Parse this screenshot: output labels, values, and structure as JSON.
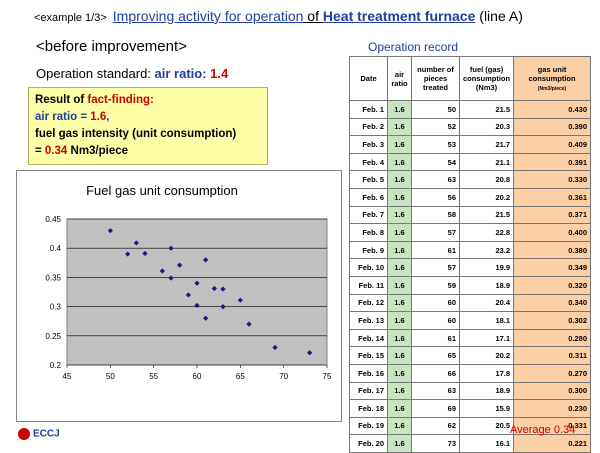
{
  "title": {
    "example": "<example 1/3>",
    "part1": "Improving activity for operation",
    "part2": " of ",
    "part3": "Heat treatment furnace",
    "part4": "  (line A)"
  },
  "before_label": "<before improvement>",
  "operation_standard": {
    "label": "Operation standard: ",
    "value_label": "air ratio: ",
    "value": "1.4"
  },
  "findings": {
    "heading_a": "Result of ",
    "heading_b": "fact-finding:",
    "air_a": "air ratio = ",
    "air_b": "1.6",
    "air_c": ",",
    "fuel_text": "fuel gas intensity (unit consumption)",
    "fuel_eq": "= ",
    "fuel_val": "0.34",
    "fuel_unit": " Nm3/piece"
  },
  "record": {
    "caption": "Operation record",
    "headers": {
      "date": "Date",
      "air_ratio": "air ratio",
      "pieces": "number of pieces treated",
      "fuel": "fuel (gas) consumption (Nm3)",
      "unit": "gas unit consumption",
      "unit_sub": "(Nm3/piece)"
    },
    "rows": [
      {
        "date": "Feb. 1",
        "air": "1.6",
        "pieces": "50",
        "fuel": "21.5",
        "unit": "0.430"
      },
      {
        "date": "Feb. 2",
        "air": "1.6",
        "pieces": "52",
        "fuel": "20.3",
        "unit": "0.390"
      },
      {
        "date": "Feb. 3",
        "air": "1.6",
        "pieces": "53",
        "fuel": "21.7",
        "unit": "0.409"
      },
      {
        "date": "Feb. 4",
        "air": "1.6",
        "pieces": "54",
        "fuel": "21.1",
        "unit": "0.391"
      },
      {
        "date": "Feb. 5",
        "air": "1.6",
        "pieces": "63",
        "fuel": "20.8",
        "unit": "0.330"
      },
      {
        "date": "Feb. 6",
        "air": "1.6",
        "pieces": "56",
        "fuel": "20.2",
        "unit": "0.361"
      },
      {
        "date": "Feb. 7",
        "air": "1.6",
        "pieces": "58",
        "fuel": "21.5",
        "unit": "0.371"
      },
      {
        "date": "Feb. 8",
        "air": "1.6",
        "pieces": "57",
        "fuel": "22.8",
        "unit": "0.400"
      },
      {
        "date": "Feb. 9",
        "air": "1.6",
        "pieces": "61",
        "fuel": "23.2",
        "unit": "0.380"
      },
      {
        "date": "Feb. 10",
        "air": "1.6",
        "pieces": "57",
        "fuel": "19.9",
        "unit": "0.349"
      },
      {
        "date": "Feb. 11",
        "air": "1.6",
        "pieces": "59",
        "fuel": "18.9",
        "unit": "0.320"
      },
      {
        "date": "Feb. 12",
        "air": "1.6",
        "pieces": "60",
        "fuel": "20.4",
        "unit": "0.340"
      },
      {
        "date": "Feb. 13",
        "air": "1.6",
        "pieces": "60",
        "fuel": "18.1",
        "unit": "0.302"
      },
      {
        "date": "Feb. 14",
        "air": "1.6",
        "pieces": "61",
        "fuel": "17.1",
        "unit": "0.280"
      },
      {
        "date": "Feb. 15",
        "air": "1.6",
        "pieces": "65",
        "fuel": "20.2",
        "unit": "0.311"
      },
      {
        "date": "Feb. 16",
        "air": "1.6",
        "pieces": "66",
        "fuel": "17.8",
        "unit": "0.270"
      },
      {
        "date": "Feb. 17",
        "air": "1.6",
        "pieces": "63",
        "fuel": "18.9",
        "unit": "0.300"
      },
      {
        "date": "Feb. 18",
        "air": "1.6",
        "pieces": "69",
        "fuel": "15.9",
        "unit": "0.230"
      },
      {
        "date": "Feb. 19",
        "air": "1.6",
        "pieces": "62",
        "fuel": "20.5",
        "unit": "0.331"
      },
      {
        "date": "Feb. 20",
        "air": "1.6",
        "pieces": "73",
        "fuel": "16.1",
        "unit": "0.221"
      }
    ],
    "average_label": "Average 0.34"
  },
  "chart_data": {
    "type": "scatter",
    "title": "Fuel gas unit consumption",
    "xlim": [
      45,
      75
    ],
    "ylim": [
      0.2,
      0.45
    ],
    "x_ticks": [
      "45",
      "50",
      "55",
      "60",
      "65",
      "70",
      "75"
    ],
    "y_ticks": [
      "0.2",
      "0.25",
      "0.3",
      "0.35",
      "0.4",
      "0.45"
    ],
    "grid": true,
    "points": [
      {
        "x": 50,
        "y": 0.43
      },
      {
        "x": 52,
        "y": 0.39
      },
      {
        "x": 53,
        "y": 0.409
      },
      {
        "x": 54,
        "y": 0.391
      },
      {
        "x": 63,
        "y": 0.33
      },
      {
        "x": 56,
        "y": 0.361
      },
      {
        "x": 58,
        "y": 0.371
      },
      {
        "x": 57,
        "y": 0.4
      },
      {
        "x": 61,
        "y": 0.38
      },
      {
        "x": 57,
        "y": 0.349
      },
      {
        "x": 59,
        "y": 0.32
      },
      {
        "x": 60,
        "y": 0.34
      },
      {
        "x": 60,
        "y": 0.302
      },
      {
        "x": 61,
        "y": 0.28
      },
      {
        "x": 65,
        "y": 0.311
      },
      {
        "x": 66,
        "y": 0.27
      },
      {
        "x": 63,
        "y": 0.3
      },
      {
        "x": 69,
        "y": 0.23
      },
      {
        "x": 62,
        "y": 0.331
      },
      {
        "x": 73,
        "y": 0.221
      }
    ],
    "plot_bg": "#c0c0c0",
    "marker_color": "#1a1a80"
  },
  "logo_text": "ECCJ"
}
